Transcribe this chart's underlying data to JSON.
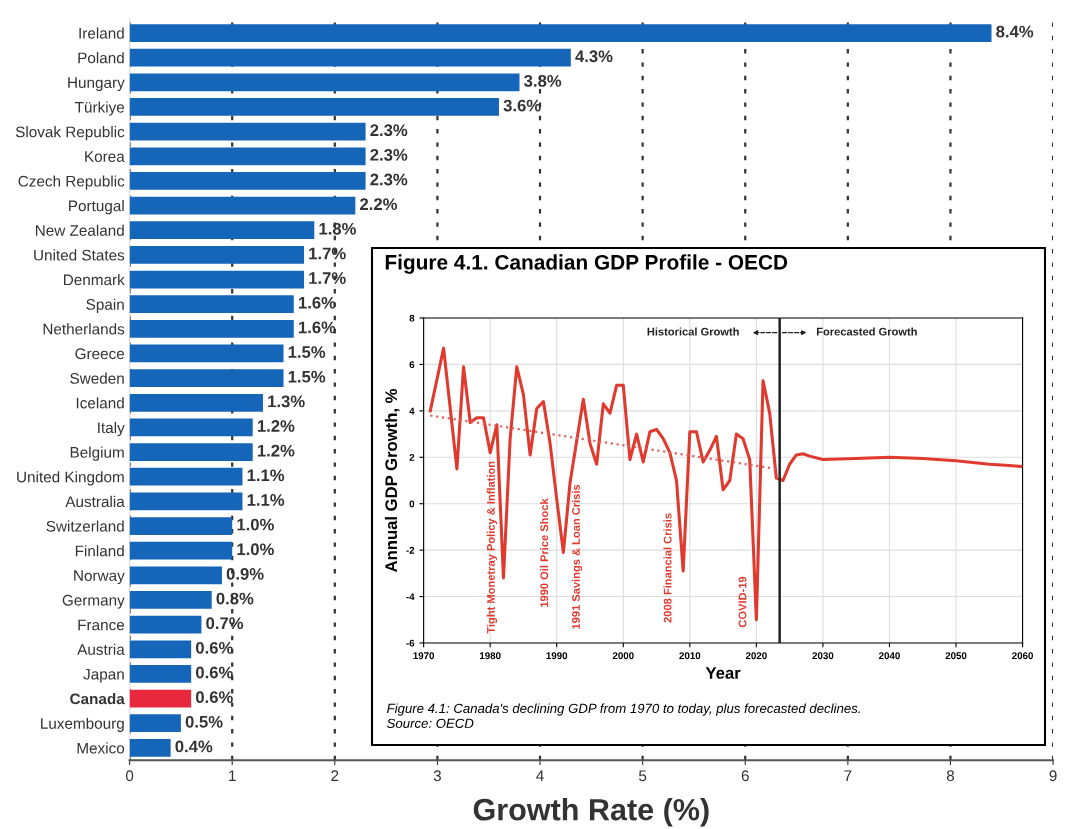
{
  "chart_data": [
    {
      "type": "bar",
      "orientation": "horizontal",
      "categories": [
        "Ireland",
        "Poland",
        "Hungary",
        "Türkiye",
        "Slovak Republic",
        "Korea",
        "Czech Republic",
        "Portugal",
        "New Zealand",
        "United States",
        "Denmark",
        "Spain",
        "Netherlands",
        "Greece",
        "Sweden",
        "Iceland",
        "Italy",
        "Belgium",
        "United Kingdom",
        "Australia",
        "Switzerland",
        "Finland",
        "Norway",
        "Germany",
        "France",
        "Austria",
        "Japan",
        "Canada",
        "Luxembourg",
        "Mexico"
      ],
      "values": [
        8.4,
        4.3,
        3.8,
        3.6,
        2.3,
        2.3,
        2.3,
        2.2,
        1.8,
        1.7,
        1.7,
        1.6,
        1.6,
        1.5,
        1.5,
        1.3,
        1.2,
        1.2,
        1.1,
        1.1,
        1.0,
        1.0,
        0.9,
        0.8,
        0.7,
        0.6,
        0.6,
        0.6,
        0.5,
        0.4
      ],
      "value_labels": [
        "8.4%",
        "4.3%",
        "3.8%",
        "3.6%",
        "2.3%",
        "2.3%",
        "2.3%",
        "2.2%",
        "1.8%",
        "1.7%",
        "1.7%",
        "1.6%",
        "1.6%",
        "1.5%",
        "1.5%",
        "1.3%",
        "1.2%",
        "1.2%",
        "1.1%",
        "1.1%",
        "1.0%",
        "1.0%",
        "0.9%",
        "0.8%",
        "0.7%",
        "0.6%",
        "0.6%",
        "0.6%",
        "0.5%",
        "0.4%"
      ],
      "colors": [
        "#1565b8",
        "#1565b8",
        "#1565b8",
        "#1565b8",
        "#1565b8",
        "#1565b8",
        "#1565b8",
        "#1565b8",
        "#1565b8",
        "#1565b8",
        "#1565b8",
        "#1565b8",
        "#1565b8",
        "#1565b8",
        "#1565b8",
        "#1565b8",
        "#1565b8",
        "#1565b8",
        "#1565b8",
        "#1565b8",
        "#1565b8",
        "#1565b8",
        "#1565b8",
        "#1565b8",
        "#1565b8",
        "#1565b8",
        "#1565b8",
        "#e8283c",
        "#1565b8",
        "#1565b8"
      ],
      "xlim": [
        0,
        9
      ],
      "xticks": [
        0,
        1,
        2,
        3,
        4,
        5,
        6,
        7,
        8,
        9
      ],
      "xlabel": "Growth Rate (%)",
      "grid": "x"
    },
    {
      "type": "line",
      "title": "Figure 4.1. Canadian GDP Profile - OECD",
      "xlabel": "Year",
      "ylabel": "Annual GDP Growth, %",
      "xlim": [
        1970,
        2060
      ],
      "xticks": [
        1970,
        1980,
        1990,
        2000,
        2010,
        2020,
        2030,
        2040,
        2050,
        2060
      ],
      "ylim": [
        -6,
        8
      ],
      "yticks": [
        -6,
        -4,
        -2,
        0,
        2,
        4,
        6,
        8
      ],
      "grid": true,
      "series": [
        {
          "color": "#e03a2f",
          "line_style": "solid",
          "x": [
            1971,
            1973,
            1975,
            1976,
            1977,
            1978,
            1979,
            1980,
            1981,
            1982,
            1983,
            1984,
            1985,
            1986,
            1987,
            1988,
            1989,
            1990,
            1991,
            1992,
            1993,
            1994,
            1995,
            1996,
            1997,
            1998,
            1999,
            2000,
            2001,
            2002,
            2003,
            2004,
            2005,
            2006,
            2007,
            2008,
            2009,
            2010,
            2011,
            2012,
            2013,
            2014,
            2015,
            2016,
            2017,
            2018,
            2019,
            2020,
            2021,
            2022,
            2023,
            2024,
            2025,
            2026,
            2027,
            2028,
            2030,
            2035,
            2040,
            2045,
            2050,
            2055,
            2058,
            2060
          ],
          "values": [
            4.0,
            6.7,
            1.5,
            5.9,
            3.5,
            3.7,
            3.7,
            2.2,
            3.4,
            -3.2,
            2.8,
            5.9,
            4.7,
            2.1,
            4.1,
            4.4,
            2.6,
            0.2,
            -2.1,
            0.9,
            2.7,
            4.5,
            2.6,
            1.7,
            4.3,
            3.9,
            5.1,
            5.1,
            1.9,
            3.0,
            1.8,
            3.1,
            3.2,
            2.8,
            2.2,
            1.0,
            -2.9,
            3.1,
            3.1,
            1.8,
            2.3,
            2.9,
            0.6,
            1.0,
            3.0,
            2.8,
            1.9,
            -5.0,
            5.3,
            3.9,
            1.1,
            1.0,
            1.7,
            2.1,
            2.15,
            2.05,
            1.9,
            1.95,
            2.0,
            1.95,
            1.85,
            1.7,
            1.65,
            1.6
          ]
        },
        {
          "type": "line",
          "color": "#e06060",
          "line_style": "dotted",
          "x": [
            1971,
            2023
          ],
          "values": [
            3.8,
            1.5
          ]
        }
      ],
      "ref_lines": [
        {
          "axis": "x",
          "value": 2023.5,
          "color": "#222222",
          "line_style": "solid"
        }
      ],
      "annotations": [
        "Historical Growth",
        "Forecasted Growth",
        "Tight Monetray Policy & Inflation",
        "1990 Oil Price Shock",
        "1991 Savings & Loan Crisis",
        "2008 Financial Crisis",
        "COVID-19",
        "Figure 4.1: Canada's declining GDP from 1970 to today, plus forecasted declines.",
        "Source: OECD"
      ]
    }
  ]
}
